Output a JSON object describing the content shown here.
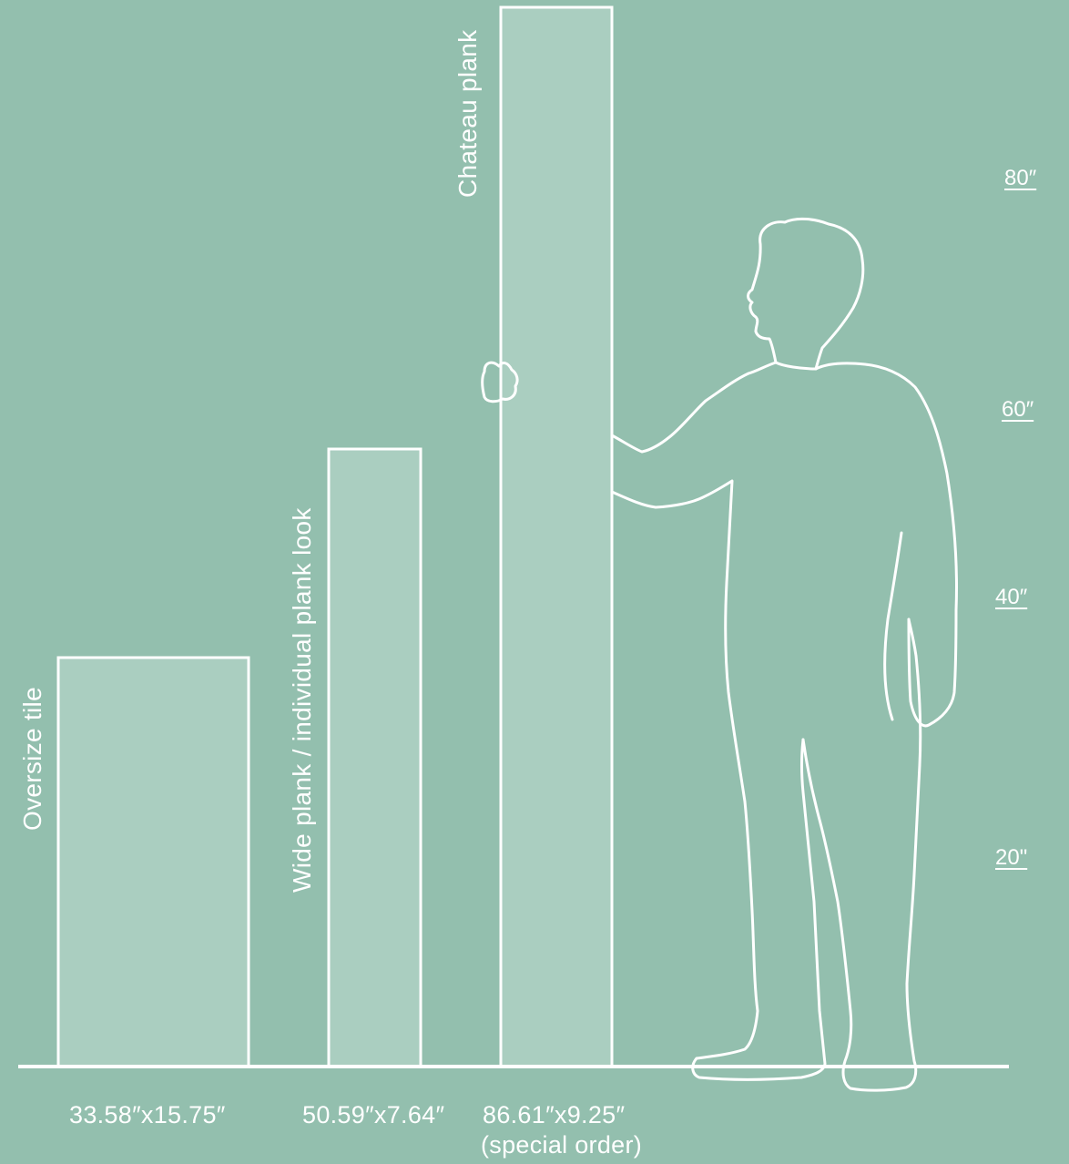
{
  "colors": {
    "background": "#93bfae",
    "tile_fill": "#aacec0",
    "line": "#ffffff"
  },
  "tiles": [
    {
      "name": "Oversize tile",
      "dimensions": "33.58″x15.75″",
      "note": ""
    },
    {
      "name": "Wide plank / individual plank look",
      "dimensions": "50.59″x7.64″",
      "note": ""
    },
    {
      "name": "Chateau plank",
      "dimensions": "86.61″x9.25″",
      "note": "(special order)"
    }
  ],
  "scale_marks": [
    "80″",
    "60″",
    "40″",
    "20\""
  ],
  "figure": "standing-person-silhouette"
}
